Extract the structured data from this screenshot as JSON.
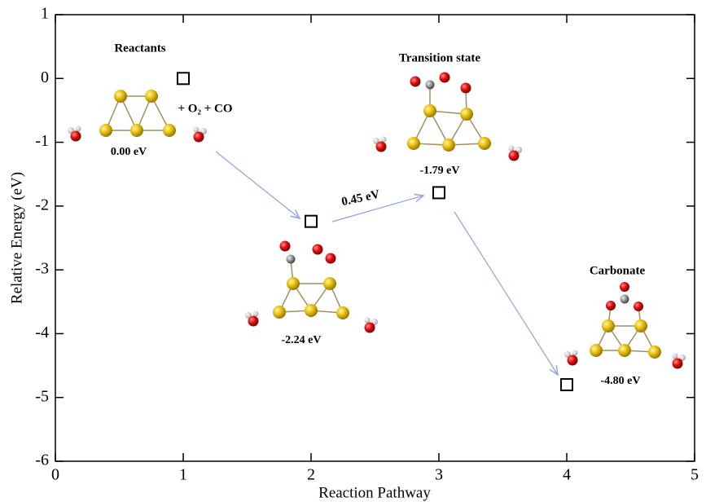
{
  "chart_data": {
    "type": "scatter",
    "x_label": "Reaction Pathway",
    "y_label": "Relative Energy (eV)",
    "x": [
      1,
      2,
      3,
      4
    ],
    "y": [
      0,
      -2.24,
      -1.79,
      -4.8
    ],
    "value_labels": [
      "0.00 eV",
      "-2.24 eV",
      "-1.79 eV",
      "-4.80 eV"
    ],
    "annotations": [
      "Reactants",
      "+ O₂ + CO",
      "0.45 eV",
      "Transition state",
      "Carbonate"
    ],
    "xlim": [
      0,
      5
    ],
    "ylim": [
      -6,
      1
    ],
    "xticks": [
      0,
      1,
      2,
      3,
      4,
      5
    ],
    "yticks": [
      -6,
      -5,
      -4,
      -3,
      -2,
      -1,
      0,
      1
    ],
    "marker": "square",
    "color": "#000000"
  }
}
